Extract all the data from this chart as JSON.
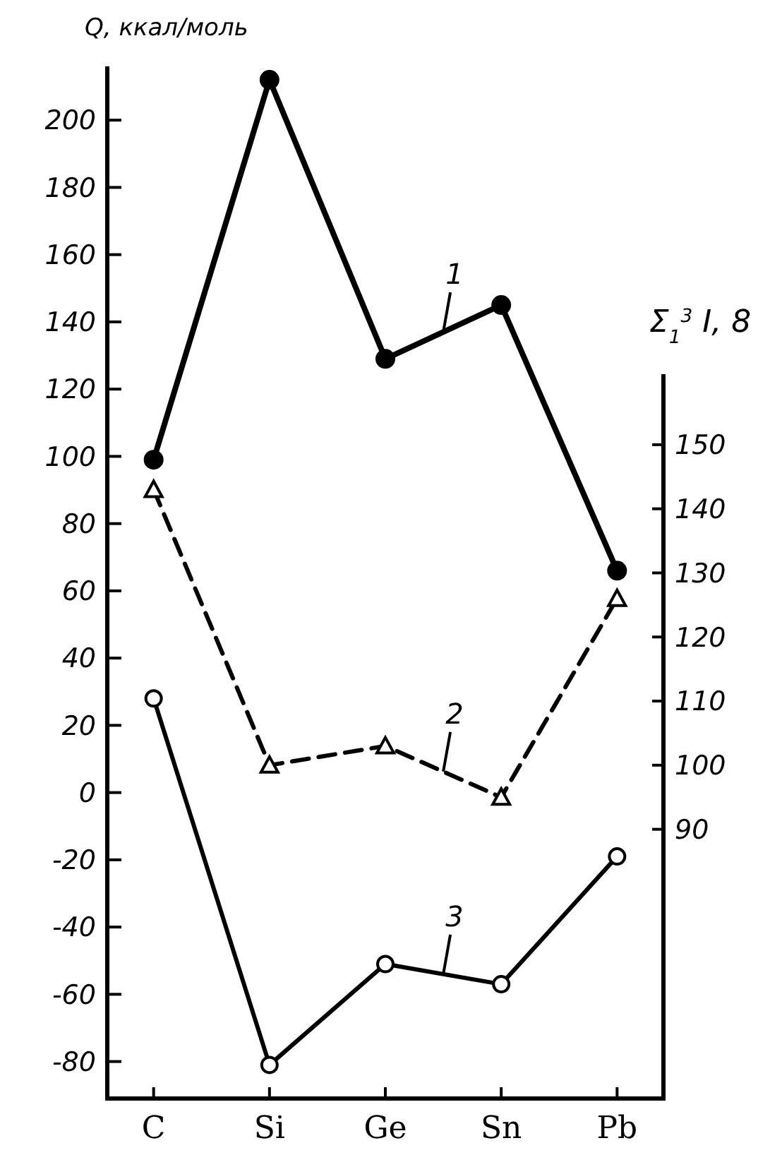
{
  "chart_data": {
    "type": "line",
    "ylabel": "Q, ккал/моль",
    "y2label": "Σ$_{1}$$^{3}$ I, 8",
    "categories": [
      "C",
      "Si",
      "Ge",
      "Sn",
      "Pb"
    ],
    "ylim": [
      -91,
      216
    ],
    "yticks": [
      -80,
      -60,
      -40,
      -20,
      0,
      20,
      40,
      60,
      80,
      100,
      120,
      140,
      160,
      180,
      200
    ],
    "y2lim": [
      48,
      161
    ],
    "y2ticks": [
      90,
      100,
      110,
      120,
      130,
      140,
      150
    ],
    "series": [
      {
        "color": "#000000",
        "values": [
          99,
          212,
          129,
          145,
          66
        ],
        "marker": "circle",
        "line_style": "solid"
      },
      {
        "color": "#000000",
        "values": [
          143,
          100,
          103,
          95,
          126
        ],
        "marker": "triangle",
        "line_style": "dashed",
        "axis": "y2"
      },
      {
        "color": "#000000",
        "values": [
          28,
          -81,
          -51,
          -57,
          -19
        ],
        "marker": "circle",
        "line_style": "solid"
      }
    ],
    "annotations": [
      "1",
      "2",
      "3"
    ]
  }
}
